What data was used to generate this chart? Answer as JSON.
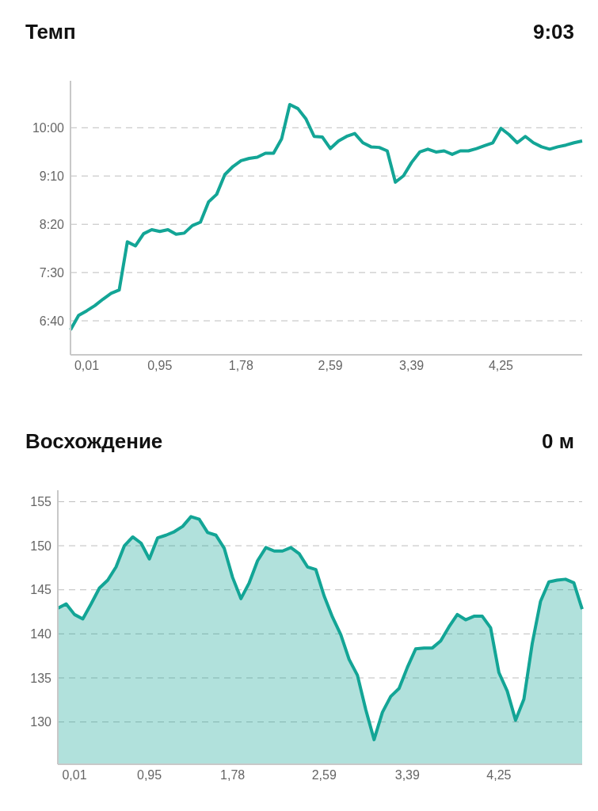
{
  "chart_data": [
    {
      "type": "line",
      "title": "Темп",
      "subtitle": "9:03",
      "categories": [
        null,
        null,
        "0,01",
        null,
        null,
        null,
        null,
        null,
        null,
        null,
        null,
        "0,95",
        null,
        null,
        null,
        null,
        null,
        null,
        null,
        null,
        null,
        "1,78",
        null,
        null,
        null,
        null,
        null,
        null,
        null,
        null,
        null,
        null,
        "2,59",
        null,
        null,
        null,
        null,
        null,
        null,
        null,
        null,
        null,
        "3,39",
        null,
        null,
        null,
        null,
        null,
        null,
        null,
        null,
        null,
        null,
        "4,25",
        null,
        null,
        null,
        null,
        null,
        null,
        null,
        null,
        null,
        null
      ],
      "series": [
        {
          "color": "#13a596",
          "values": [
            6.51,
            6.76,
            6.84,
            6.93,
            7.04,
            7.14,
            7.2,
            8.03,
            7.96,
            8.17,
            8.24,
            8.21,
            8.24,
            8.16,
            8.18,
            8.31,
            8.37,
            8.72,
            8.85,
            9.19,
            9.33,
            9.43,
            9.47,
            9.49,
            9.56,
            9.56,
            9.81,
            10.4,
            10.33,
            10.15,
            9.85,
            9.84,
            9.64,
            9.77,
            9.85,
            9.9,
            9.74,
            9.67,
            9.66,
            9.6,
            9.06,
            9.17,
            9.4,
            9.58,
            9.63,
            9.58,
            9.6,
            9.54,
            9.6,
            9.6,
            9.64,
            9.69,
            9.74,
            9.99,
            9.88,
            9.74,
            9.85,
            9.74,
            9.67,
            9.63,
            9.67,
            9.7,
            9.74,
            9.77
          ]
        }
      ],
      "ylim": [
        6.08,
        10.81
      ],
      "yticks": [
        {
          "value": 6.667,
          "label": "6:40"
        },
        {
          "value": 7.5,
          "label": "7:30"
        },
        {
          "value": 8.333,
          "label": "8:20"
        },
        {
          "value": 9.167,
          "label": "9:10"
        },
        {
          "value": 10,
          "label": "10:00"
        }
      ],
      "grid": "y",
      "marker": "none",
      "line_style": "solid"
    },
    {
      "type": "area",
      "title": "Восхождение",
      "subtitle": "0 м",
      "categories": [
        null,
        null,
        "0,01",
        null,
        null,
        null,
        null,
        null,
        null,
        null,
        null,
        "0,95",
        null,
        null,
        null,
        null,
        null,
        null,
        null,
        null,
        null,
        "1,78",
        null,
        null,
        null,
        null,
        null,
        null,
        null,
        null,
        null,
        null,
        "2,59",
        null,
        null,
        null,
        null,
        null,
        null,
        null,
        null,
        null,
        "3,39",
        null,
        null,
        null,
        null,
        null,
        null,
        null,
        null,
        null,
        null,
        "4,25",
        null,
        null,
        null,
        null,
        null,
        null,
        null,
        null,
        null,
        null
      ],
      "series": [
        {
          "color": "#13a596",
          "values": [
            142.9,
            143.4,
            142.2,
            141.7,
            143.4,
            145.2,
            146.1,
            147.6,
            150.0,
            151.0,
            150.3,
            148.5,
            150.9,
            151.2,
            151.6,
            152.2,
            153.3,
            153.0,
            151.5,
            151.2,
            149.7,
            146.4,
            144.0,
            145.8,
            148.3,
            149.8,
            149.4,
            149.4,
            149.8,
            149.1,
            147.6,
            147.3,
            144.3,
            141.9,
            139.9,
            137.1,
            135.3,
            131.4,
            128.0,
            131.1,
            132.9,
            133.8,
            136.2,
            138.3,
            138.4,
            138.4,
            139.2,
            140.8,
            142.2,
            141.6,
            142.0,
            142.0,
            140.7,
            135.6,
            133.5,
            130.2,
            132.6,
            138.9,
            143.7,
            145.9,
            146.1,
            146.2,
            145.8,
            142.8
          ]
        }
      ],
      "ylim": [
        125.2,
        156.3
      ],
      "yticks": [
        130,
        135,
        140,
        145,
        150,
        155
      ],
      "grid": "y",
      "marker": "none",
      "line_style": "solid"
    }
  ]
}
